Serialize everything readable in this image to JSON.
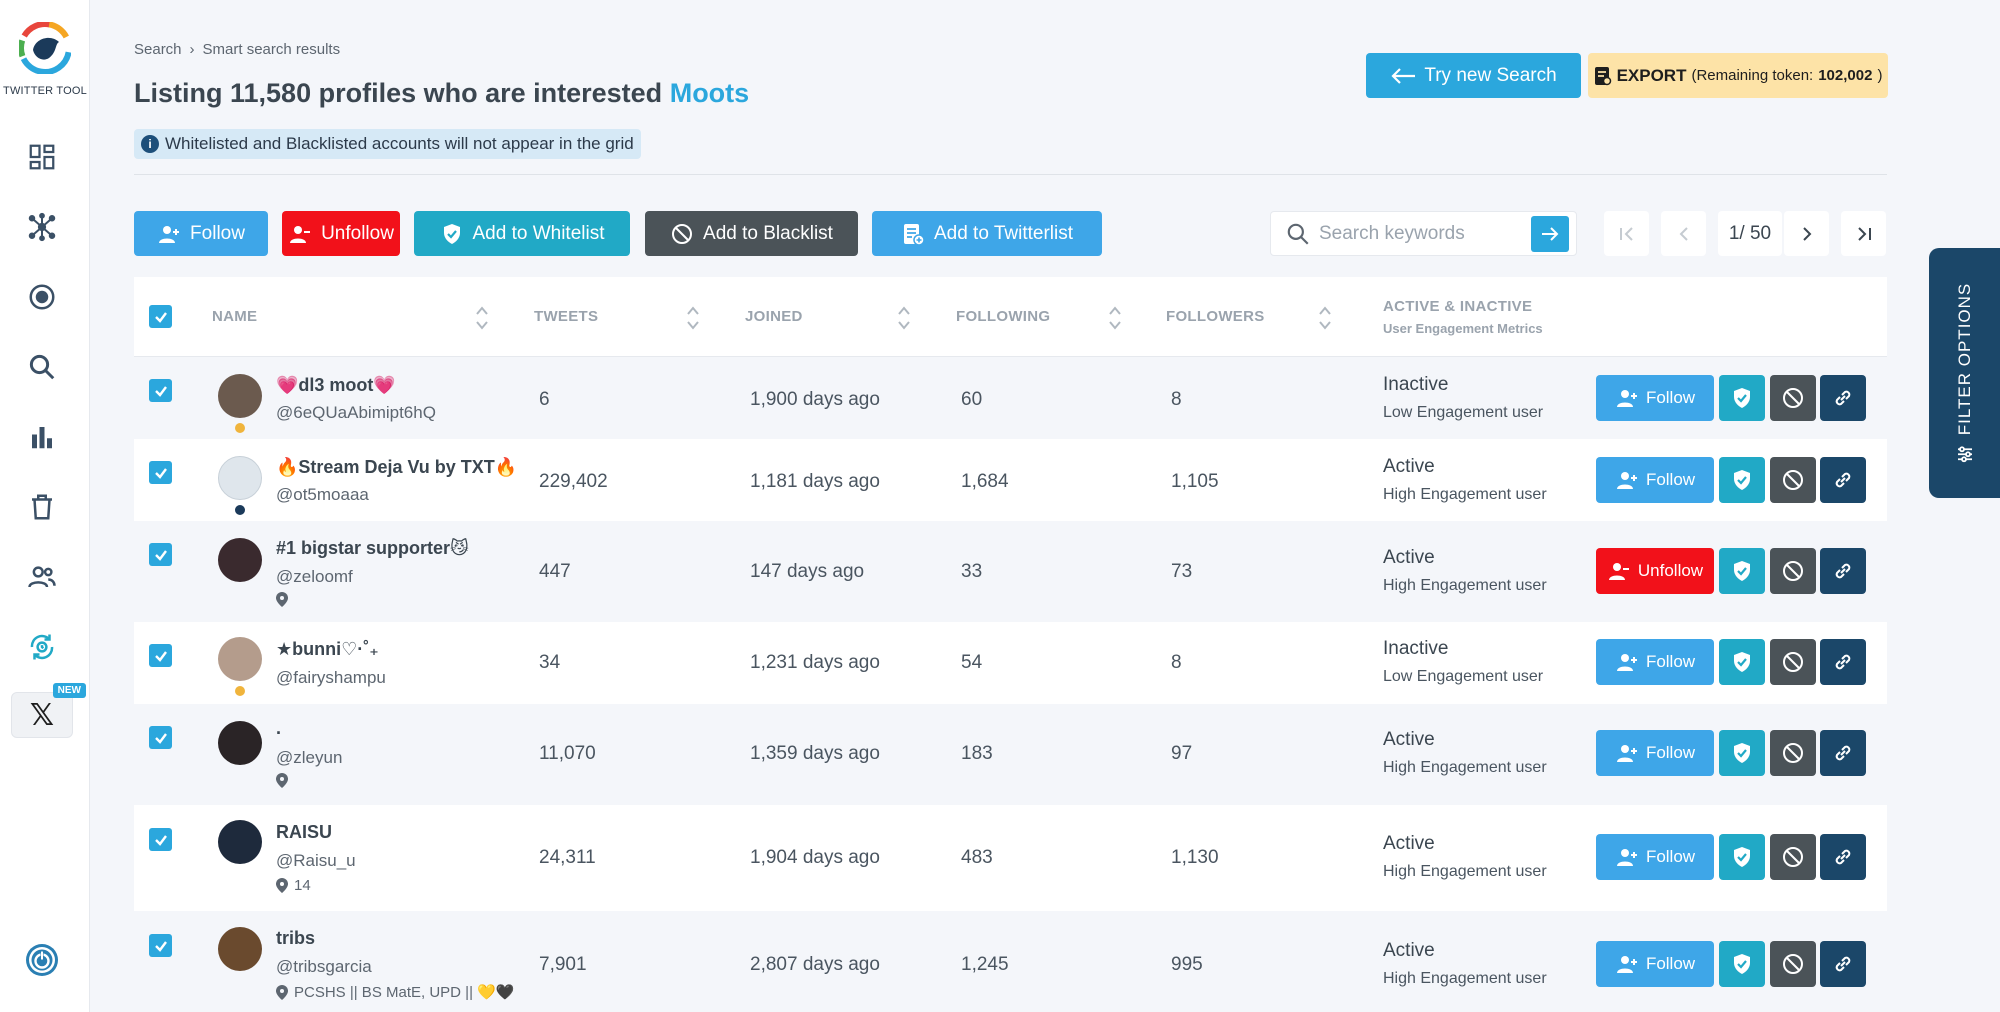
{
  "sidebar": {
    "logo_text": "TWITTER TOOL",
    "items": [
      {
        "icon": "dashboard-icon"
      },
      {
        "icon": "network-icon"
      },
      {
        "icon": "target-icon"
      },
      {
        "icon": "search-icon"
      },
      {
        "icon": "bar-chart-icon"
      },
      {
        "icon": "trash-icon"
      },
      {
        "icon": "users-icon"
      },
      {
        "icon": "sync-clock-icon"
      }
    ],
    "x_label": "𝕏",
    "new_badge": "NEW"
  },
  "breadcrumb": {
    "root": "Search",
    "separator": "›",
    "current": "Smart search results"
  },
  "header": {
    "title_prefix": "Listing 11,580 profiles who are interested",
    "title_keyword": "Moots",
    "info_icon": "i",
    "info_note": "Whitelisted and Blacklisted accounts will not appear in the grid",
    "try_label": "Try new Search",
    "export_label": "EXPORT",
    "export_token_prefix": "(Remaining token:",
    "export_token_value": "102,002",
    "export_token_suffix": ")"
  },
  "toolbar": {
    "follow": "Follow",
    "unfollow": "Unfollow",
    "whitelist": "Add to Whitelist",
    "blacklist": "Add to Blacklist",
    "twitterlist": "Add to Twitterlist",
    "search_placeholder": "Search keywords",
    "page_info": "1/ 50"
  },
  "filter_tab": {
    "label": "FILTER OPTIONS"
  },
  "table": {
    "headers": {
      "name": "NAME",
      "tweets": "TWEETS",
      "joined": "JOINED",
      "following": "FOLLOWING",
      "followers": "FOLLOWERS",
      "activity": "ACTIVE & INACTIVE",
      "activity_sub": "User Engagement Metrics"
    },
    "rows": [
      {
        "name": "💗dl3 moot💗",
        "handle": "@6eQUaAbimipt6hQ",
        "location": "",
        "tweets": "6",
        "joined": "1,900 days ago",
        "following": "60",
        "followers": "8",
        "status": "Inactive",
        "engagement": "Low Engagement user",
        "action": "Follow",
        "dot_color": "#f0b43c",
        "avatar_color": "#6b5a4e"
      },
      {
        "name": "🔥Stream Deja Vu by TXT🔥",
        "handle": "@ot5moaaa",
        "location": "",
        "tweets": "229,402",
        "joined": "1,181 days ago",
        "following": "1,684",
        "followers": "1,105",
        "status": "Active",
        "engagement": "High Engagement user",
        "action": "Follow",
        "dot_color": "#1b3a5a",
        "avatar_color": "#dfe6ec"
      },
      {
        "name": "#1 bigstar supporter😼",
        "handle": "@zeloomf",
        "location": " ",
        "tweets": "447",
        "joined": "147 days ago",
        "following": "33",
        "followers": "73",
        "status": "Active",
        "engagement": "High Engagement user",
        "action": "Unfollow",
        "dot_color": "",
        "avatar_color": "#3a2a2e"
      },
      {
        "name": "★bunni♡·˚₊",
        "handle": "@fairyshampu",
        "location": "",
        "tweets": "34",
        "joined": "1,231 days ago",
        "following": "54",
        "followers": "8",
        "status": "Inactive",
        "engagement": "Low Engagement user",
        "action": "Follow",
        "dot_color": "#f0b43c",
        "avatar_color": "#b49c8c"
      },
      {
        "name": ".",
        "handle": "@zleyun",
        "location": " ",
        "tweets": "11,070",
        "joined": "1,359 days ago",
        "following": "183",
        "followers": "97",
        "status": "Active",
        "engagement": "High Engagement user",
        "action": "Follow",
        "dot_color": "",
        "avatar_color": "#2a2426"
      },
      {
        "name": "RAISU",
        "handle": "@Raisu_u",
        "location": "14",
        "tweets": "24,311",
        "joined": "1,904 days ago",
        "following": "483",
        "followers": "1,130",
        "status": "Active",
        "engagement": "High Engagement user",
        "action": "Follow",
        "dot_color": "",
        "avatar_color": "#1e2a3c"
      },
      {
        "name": "tribs",
        "handle": "@tribsgarcia",
        "location": "PCSHS || BS MatE, UPD || 💛🖤",
        "tweets": "7,901",
        "joined": "2,807 days ago",
        "following": "1,245",
        "followers": "995",
        "status": "Active",
        "engagement": "High Engagement user",
        "action": "Follow",
        "dot_color": "",
        "avatar_color": "#6a4a2e"
      }
    ]
  },
  "colors": {
    "accent": "#2ba7dd",
    "follow": "#3ea6e8",
    "unfollow": "#f2111a",
    "whitelist": "#21a9c6",
    "blacklist": "#4b5358",
    "navy": "#1b4769",
    "export_bg": "#fde3a7"
  }
}
